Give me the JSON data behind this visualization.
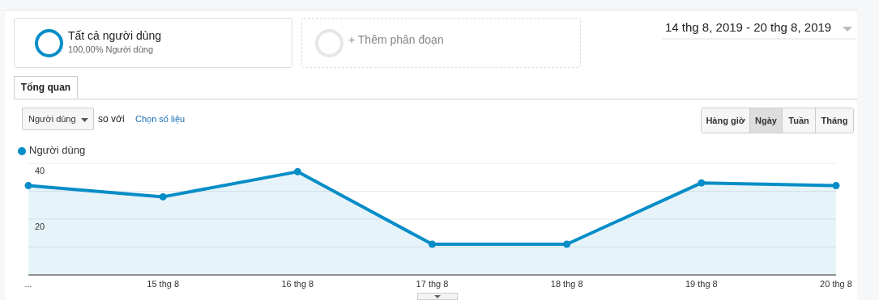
{
  "chart_data": {
    "type": "area",
    "categories": [
      "...",
      "15 thg 8",
      "16 thg 8",
      "17 thg 8",
      "18 thg 8",
      "19 thg 8",
      "20 thg 8"
    ],
    "series": [
      {
        "name": "Người dùng",
        "color": "#058dc7",
        "values": [
          32,
          28,
          37,
          11,
          11,
          33,
          32
        ]
      }
    ],
    "ylim": [
      0,
      40
    ],
    "yticks": [
      {
        "value": 0,
        "label": null
      },
      {
        "value": 10,
        "label": null
      },
      20,
      {
        "value": 30,
        "label": null
      },
      40
    ],
    "grid": "y",
    "legend": "top left",
    "marker": "circle",
    "line_style": "solid",
    "annotations": [
      "Tất cả người dùng",
      "100,00% Người dùng",
      "+ Thêm phân đoạn",
      "14 thg 8, 2019 - 20 thg 8, 2019",
      "Tổng quan",
      "Người dùng",
      "so với",
      "Chọn số liệu",
      "Hàng giờ",
      "Ngày",
      "Tuần",
      "Tháng"
    ]
  }
}
